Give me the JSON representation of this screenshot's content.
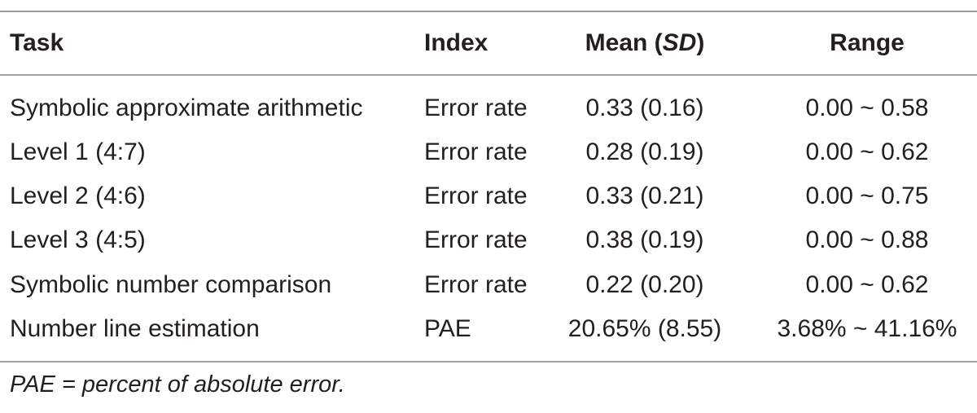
{
  "table": {
    "headers": {
      "task": "Task",
      "index": "Index",
      "mean_prefix": "Mean (",
      "mean_sd": "SD",
      "mean_suffix": ")",
      "range": "Range"
    },
    "rows": [
      {
        "task": "Symbolic approximate arithmetic",
        "index": "Error rate",
        "mean": "0.33 (0.16)",
        "range": "0.00 ~ 0.58"
      },
      {
        "task": "Level 1 (4:7)",
        "index": "Error rate",
        "mean": "0.28 (0.19)",
        "range": "0.00 ~ 0.62"
      },
      {
        "task": "Level 2 (4:6)",
        "index": "Error rate",
        "mean": "0.33 (0.21)",
        "range": "0.00 ~ 0.75"
      },
      {
        "task": "Level 3 (4:5)",
        "index": "Error rate",
        "mean": "0.38 (0.19)",
        "range": "0.00 ~ 0.88"
      },
      {
        "task": "Symbolic number comparison",
        "index": "Error rate",
        "mean": "0.22 (0.20)",
        "range": "0.00 ~ 0.62"
      },
      {
        "task": "Number line estimation",
        "index": "PAE",
        "mean": "20.65% (8.55)",
        "range": "3.68% ~ 41.16%"
      }
    ]
  },
  "footnote": "PAE = percent of absolute error."
}
